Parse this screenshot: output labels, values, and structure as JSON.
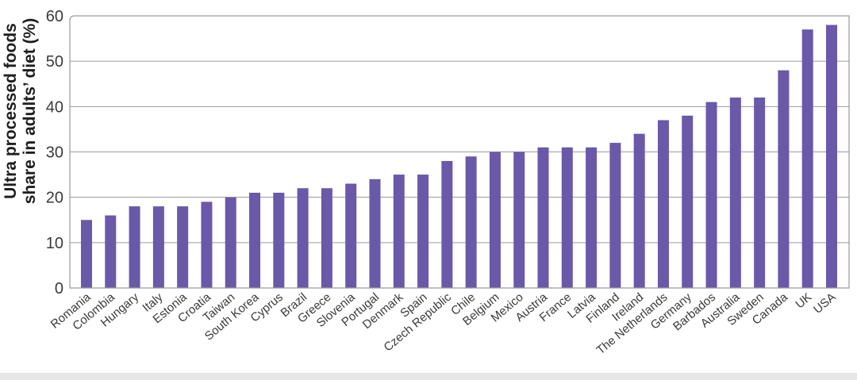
{
  "chart_data": {
    "type": "bar",
    "ylabel_lines": [
      "Ultra processed foods",
      "share in adults’ diet (%)"
    ],
    "ylim": [
      0,
      60
    ],
    "yticks": [
      0,
      10,
      20,
      30,
      40,
      50,
      60
    ],
    "grid": true,
    "bar_color": "#6a58a8",
    "categories": [
      "Romania",
      "Colombia",
      "Hungary",
      "Italy",
      "Estonia",
      "Croatia",
      "Taiwan",
      "South Korea",
      "Cyprus",
      "Brazil",
      "Greece",
      "Slovenia",
      "Portugal",
      "Denmark",
      "Spain",
      "Czech Republic",
      "Chile",
      "Belgium",
      "Mexico",
      "Austria",
      "France",
      "Latvia",
      "Finland",
      "Ireland",
      "The Netherlands",
      "Germany",
      "Barbados",
      "Australia",
      "Sweden",
      "Canada",
      "UK",
      "USA"
    ],
    "values": [
      15,
      16,
      18,
      18,
      18,
      19,
      20,
      21,
      21,
      22,
      22,
      23,
      24,
      25,
      25,
      28,
      29,
      30,
      30,
      31,
      31,
      31,
      32,
      34,
      37,
      38,
      41,
      42,
      42,
      48,
      57,
      58
    ]
  }
}
